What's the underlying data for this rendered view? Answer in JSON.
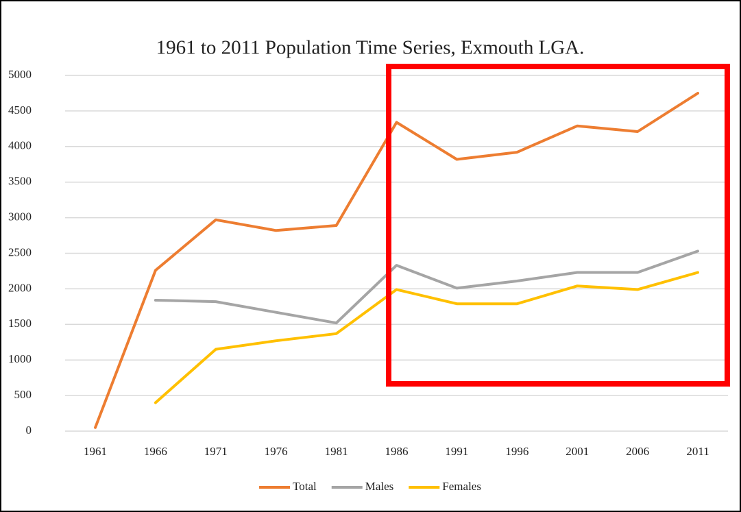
{
  "chart_data": {
    "type": "line",
    "title": "1961 to 2011 Population Time Series, Exmouth LGA.",
    "categories": [
      "1961",
      "1966",
      "1971",
      "1976",
      "1981",
      "1986",
      "1991",
      "1996",
      "2001",
      "2006",
      "2011"
    ],
    "series": [
      {
        "name": "Total",
        "color": "#ed7d31",
        "values": [
          50,
          2260,
          2970,
          2820,
          2890,
          4340,
          3820,
          3920,
          4290,
          4210,
          4750
        ]
      },
      {
        "name": "Males",
        "color": "#a5a5a5",
        "values": [
          null,
          1840,
          1820,
          1670,
          1520,
          2330,
          2010,
          2110,
          2230,
          2230,
          2530
        ]
      },
      {
        "name": "Females",
        "color": "#ffc000",
        "values": [
          null,
          400,
          1150,
          1270,
          1370,
          1990,
          1790,
          1790,
          2040,
          1990,
          2230
        ]
      }
    ],
    "ylim": [
      0,
      5000
    ],
    "yticks": [
      0,
      500,
      1000,
      1500,
      2000,
      2500,
      3000,
      3500,
      4000,
      4500,
      5000
    ],
    "grid": true,
    "legend": "bottom"
  }
}
